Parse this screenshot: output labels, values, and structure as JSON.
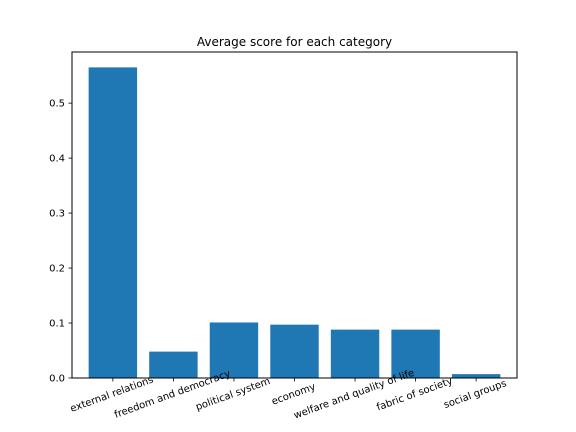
{
  "chart_data": {
    "type": "bar",
    "title": "Average score for each category",
    "xlabel": "",
    "ylabel": "",
    "categories": [
      "external relations",
      "freedom and democracy",
      "political system",
      "economy",
      "welfare and quality of life",
      "fabric of society",
      "social groups"
    ],
    "values": [
      0.565,
      0.048,
      0.101,
      0.097,
      0.088,
      0.088,
      0.007
    ],
    "ylim": [
      0,
      0.593
    ],
    "yticks": [
      0.0,
      0.1,
      0.2,
      0.3,
      0.4,
      0.5
    ],
    "ytick_labels": [
      "0.0",
      "0.1",
      "0.2",
      "0.3",
      "0.4",
      "0.5"
    ],
    "grid": false,
    "legend": "none",
    "bar_color": "#1f77b4",
    "x_tick_rotation_deg": -20
  }
}
